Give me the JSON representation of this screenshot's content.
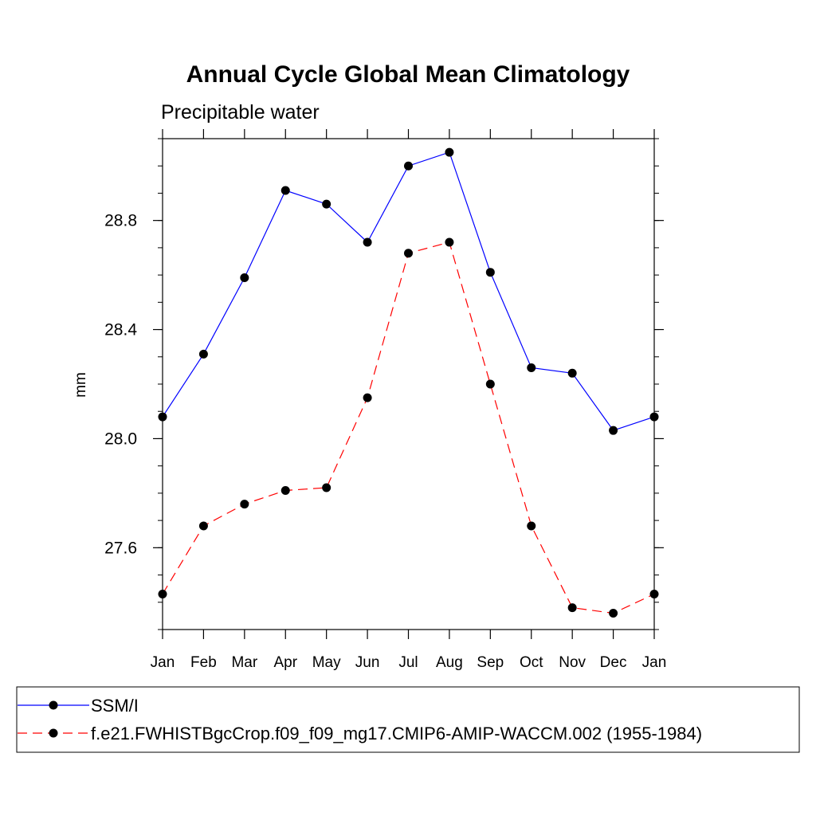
{
  "chart_data": {
    "type": "line",
    "title": "Annual Cycle Global Mean Climatology",
    "subtitle": "Precipitable water",
    "xlabel": "",
    "ylabel": "mm",
    "categories": [
      "Jan",
      "Feb",
      "Mar",
      "Apr",
      "May",
      "Jun",
      "Jul",
      "Aug",
      "Sep",
      "Oct",
      "Nov",
      "Dec",
      "Jan"
    ],
    "ylim": [
      27.3,
      29.1
    ],
    "yticks": [
      "27.6",
      "28.0",
      "28.4",
      "28.8"
    ],
    "grid": false,
    "legend_position": "bottom",
    "series": [
      {
        "name": "SSM/I",
        "color": "#0000ff",
        "dash": "solid",
        "marker": "circle",
        "values": [
          28.08,
          28.31,
          28.59,
          28.91,
          28.86,
          28.72,
          29.0,
          29.05,
          28.61,
          28.26,
          28.24,
          28.03,
          28.08
        ]
      },
      {
        "name": "f.e21.FWHISTBgcCrop.f09_f09_mg17.CMIP6-AMIP-WACCM.002 (1955-1984)",
        "color": "#ff0000",
        "dash": "dashed",
        "marker": "circle",
        "values": [
          27.43,
          27.68,
          27.76,
          27.81,
          27.82,
          28.15,
          28.68,
          28.72,
          28.2,
          27.68,
          27.38,
          27.36,
          27.43
        ]
      }
    ]
  }
}
